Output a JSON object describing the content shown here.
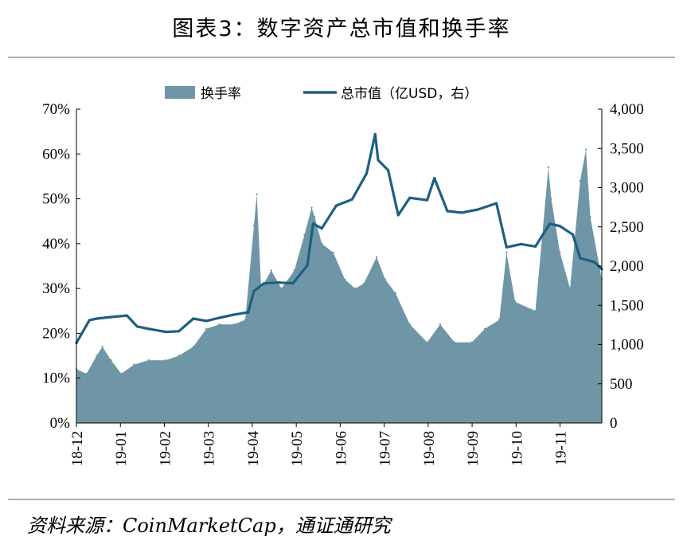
{
  "figure_title": "图表3：数字资产总市值和换手率",
  "source": "资料来源：CoinMarketCap，通证通研究",
  "colors": {
    "turnover_fill": "#6f96a6",
    "market_cap_line": "#1d5f80",
    "axis": "#000000",
    "rule": "#a9b3b8"
  },
  "chart_data": {
    "type": "bar+line",
    "x_tick_labels": [
      "18-12",
      "19-01",
      "19-02",
      "19-03",
      "19-04",
      "19-05",
      "19-06",
      "19-07",
      "19-08",
      "19-09",
      "19-10",
      "19-11"
    ],
    "x_range": [
      "2018-12-01",
      "2019-11-30"
    ],
    "legend_placement": "top-center",
    "grid": false,
    "left_axis": {
      "ticks": [
        "0%",
        "10%",
        "20%",
        "30%",
        "40%",
        "50%",
        "60%",
        "70%"
      ],
      "ylim": [
        0,
        70
      ],
      "unit": "%"
    },
    "right_axis": {
      "ticks": [
        "0",
        "500",
        "1,000",
        "1,500",
        "2,000",
        "2,500",
        "3,000",
        "3,500",
        "4,000"
      ],
      "ylim": [
        0,
        4000
      ]
    },
    "series": [
      {
        "name": "换手率",
        "type": "area-bar",
        "axis": "left",
        "points": [
          [
            "2018-12-01",
            12
          ],
          [
            "2018-12-08",
            11
          ],
          [
            "2018-12-15",
            15
          ],
          [
            "2018-12-19",
            17
          ],
          [
            "2018-12-25",
            14
          ],
          [
            "2019-01-01",
            11
          ],
          [
            "2019-01-10",
            13
          ],
          [
            "2019-01-20",
            14
          ],
          [
            "2019-02-01",
            14
          ],
          [
            "2019-02-10",
            15
          ],
          [
            "2019-02-20",
            17
          ],
          [
            "2019-03-01",
            21
          ],
          [
            "2019-03-10",
            22
          ],
          [
            "2019-03-20",
            22
          ],
          [
            "2019-03-28",
            23
          ],
          [
            "2019-04-03",
            44
          ],
          [
            "2019-04-05",
            51
          ],
          [
            "2019-04-08",
            30
          ],
          [
            "2019-04-15",
            34
          ],
          [
            "2019-04-22",
            30
          ],
          [
            "2019-05-01",
            34
          ],
          [
            "2019-05-08",
            42
          ],
          [
            "2019-05-13",
            48
          ],
          [
            "2019-05-15",
            46
          ],
          [
            "2019-05-20",
            40
          ],
          [
            "2019-05-28",
            38
          ],
          [
            "2019-06-05",
            32
          ],
          [
            "2019-06-12",
            30
          ],
          [
            "2019-06-18",
            31
          ],
          [
            "2019-06-27",
            37
          ],
          [
            "2019-07-03",
            32
          ],
          [
            "2019-07-10",
            29
          ],
          [
            "2019-07-20",
            22
          ],
          [
            "2019-08-01",
            18
          ],
          [
            "2019-08-10",
            22
          ],
          [
            "2019-08-20",
            18
          ],
          [
            "2019-09-01",
            18
          ],
          [
            "2019-09-10",
            21
          ],
          [
            "2019-09-20",
            23
          ],
          [
            "2019-09-25",
            38
          ],
          [
            "2019-10-01",
            27
          ],
          [
            "2019-10-15",
            25
          ],
          [
            "2019-10-24",
            57
          ],
          [
            "2019-10-26",
            50
          ],
          [
            "2019-11-01",
            38
          ],
          [
            "2019-11-08",
            30
          ],
          [
            "2019-11-15",
            54
          ],
          [
            "2019-11-19",
            61
          ],
          [
            "2019-11-22",
            46
          ],
          [
            "2019-11-30",
            32
          ]
        ]
      },
      {
        "name": "总市值（亿USD，右）",
        "type": "line",
        "axis": "right",
        "points": [
          [
            "2018-12-01",
            1020
          ],
          [
            "2018-12-05",
            1150
          ],
          [
            "2018-12-10",
            1310
          ],
          [
            "2018-12-15",
            1330
          ],
          [
            "2018-12-25",
            1350
          ],
          [
            "2019-01-05",
            1370
          ],
          [
            "2019-01-12",
            1230
          ],
          [
            "2019-01-20",
            1200
          ],
          [
            "2019-02-01",
            1160
          ],
          [
            "2019-02-10",
            1170
          ],
          [
            "2019-02-20",
            1330
          ],
          [
            "2019-03-01",
            1300
          ],
          [
            "2019-03-10",
            1340
          ],
          [
            "2019-03-20",
            1380
          ],
          [
            "2019-03-30",
            1410
          ],
          [
            "2019-04-03",
            1680
          ],
          [
            "2019-04-10",
            1780
          ],
          [
            "2019-04-20",
            1790
          ],
          [
            "2019-04-30",
            1780
          ],
          [
            "2019-05-10",
            2010
          ],
          [
            "2019-05-14",
            2540
          ],
          [
            "2019-05-20",
            2480
          ],
          [
            "2019-05-30",
            2770
          ],
          [
            "2019-06-10",
            2850
          ],
          [
            "2019-06-20",
            3180
          ],
          [
            "2019-06-26",
            3680
          ],
          [
            "2019-06-28",
            3350
          ],
          [
            "2019-07-05",
            3220
          ],
          [
            "2019-07-12",
            2650
          ],
          [
            "2019-07-20",
            2870
          ],
          [
            "2019-08-01",
            2840
          ],
          [
            "2019-08-06",
            3120
          ],
          [
            "2019-08-15",
            2700
          ],
          [
            "2019-08-25",
            2680
          ],
          [
            "2019-09-05",
            2720
          ],
          [
            "2019-09-18",
            2800
          ],
          [
            "2019-09-25",
            2240
          ],
          [
            "2019-10-05",
            2280
          ],
          [
            "2019-10-15",
            2250
          ],
          [
            "2019-10-25",
            2540
          ],
          [
            "2019-11-01",
            2510
          ],
          [
            "2019-11-10",
            2400
          ],
          [
            "2019-11-15",
            2100
          ],
          [
            "2019-11-25",
            2050
          ],
          [
            "2019-11-30",
            1960
          ]
        ]
      }
    ]
  }
}
